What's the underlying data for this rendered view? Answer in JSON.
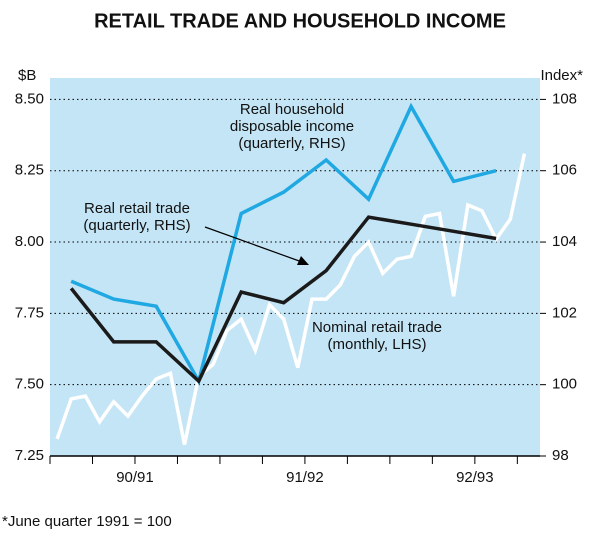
{
  "chart_data": {
    "type": "line",
    "title": "RETAIL TRADE AND HOUSEHOLD INCOME",
    "y_label": "$B",
    "y2_label": "Index*",
    "footnote": "*June quarter 1991 = 100",
    "background": "#c4e5f6",
    "grid": true,
    "xlim": [
      0,
      34.6
    ],
    "xtick_marks": [
      0,
      3,
      6,
      9,
      12,
      15,
      18,
      21,
      24,
      27,
      30,
      33
    ],
    "year_labels": [
      {
        "value": 6,
        "label": "90/91"
      },
      {
        "value": 18,
        "label": "91/92"
      },
      {
        "value": 30,
        "label": "92/93"
      }
    ],
    "ylim": [
      7.25,
      8.575
    ],
    "yticks": [
      {
        "value": 7.25,
        "label": "7.25"
      },
      {
        "value": 7.5,
        "label": "7.50"
      },
      {
        "value": 7.75,
        "label": "7.75"
      },
      {
        "value": 8,
        "label": "8.00"
      },
      {
        "value": 8.25,
        "label": "8.25"
      },
      {
        "value": 8.5,
        "label": "8.50"
      }
    ],
    "y2lim": [
      98,
      108.6
    ],
    "y2ticks": [
      98,
      100,
      102,
      104,
      106,
      108
    ],
    "series": [
      {
        "label": [
          "Nominal retail trade",
          "(monthly, LHS)"
        ],
        "color": "#ffffff",
        "axis": "y",
        "x": [
          0.5,
          1.5,
          2.5,
          3.5,
          4.5,
          5.5,
          6.5,
          7.5,
          8.5,
          9.5,
          10.5,
          11.5,
          12.5,
          13.5,
          14.5,
          15.5,
          16.5,
          17.5,
          18.5,
          19.5,
          20.5,
          21.5,
          22.5,
          23.5,
          24.5,
          25.5,
          26.5,
          27.5,
          28.5,
          29.5,
          30.5,
          31.5,
          32.5,
          33.5
        ],
        "values": [
          7.31,
          7.45,
          7.46,
          7.37,
          7.44,
          7.39,
          7.46,
          7.52,
          7.54,
          7.29,
          7.53,
          7.57,
          7.69,
          7.73,
          7.62,
          7.78,
          7.73,
          7.56,
          7.8,
          7.8,
          7.85,
          7.95,
          8.0,
          7.89,
          7.94,
          7.95,
          8.09,
          8.1,
          7.81,
          8.13,
          8.11,
          8.01,
          8.08,
          8.31
        ]
      },
      {
        "label": [
          "Real household",
          "disposable income",
          "(quarterly, RHS)"
        ],
        "color": "#1fa8e2",
        "axis": "y2",
        "x": [
          1.5,
          4.5,
          7.5,
          10.5,
          13.5,
          16.5,
          19.5,
          22.5,
          25.5,
          28.5,
          31.5
        ],
        "values": [
          102.9,
          102.4,
          102.2,
          100.1,
          104.8,
          105.4,
          106.3,
          105.2,
          107.8,
          105.7,
          106.0
        ]
      },
      {
        "label": [
          "Real retail trade",
          "(quarterly, RHS)"
        ],
        "color": "#1a1a1a",
        "axis": "y2",
        "x": [
          1.5,
          4.5,
          7.5,
          10.5,
          13.5,
          16.5,
          19.5,
          22.5,
          25.5,
          28.5,
          31.5
        ],
        "values": [
          102.7,
          101.2,
          101.2,
          100.1,
          102.6,
          102.3,
          103.2,
          104.7,
          104.5,
          104.3,
          104.1
        ]
      }
    ]
  }
}
